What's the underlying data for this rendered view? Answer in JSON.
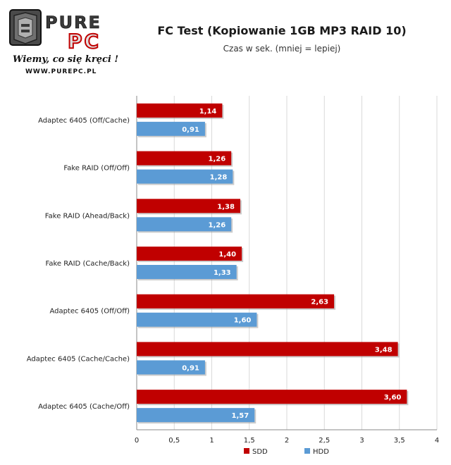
{
  "logo": {
    "wordmark": "PURE PC",
    "slogan": "Wiemy, co się kręci !",
    "url": "WWW.PUREPC.PL"
  },
  "colors": {
    "sdd": "#c00000",
    "hdd": "#5b9bd5",
    "grid": "#d9d9d9",
    "axis": "#888888"
  },
  "chart_data": {
    "type": "bar",
    "orientation": "horizontal",
    "title": "FC Test (Kopiowanie 1GB MP3 RAID 10)",
    "subtitle": "Czas w sek. (mniej = lepiej)",
    "categories": [
      "Adaptec 6405 (Off/Cache)",
      "Fake RAID (Off/Off)",
      "Fake RAID (Ahead/Back)",
      "Fake RAID (Cache/Back)",
      "Adaptec 6405 (Off/Off)",
      "Adaptec 6405 (Cache/Cache)",
      "Adaptec 6405 (Cache/Off)"
    ],
    "series": [
      {
        "name": "SDD",
        "values": [
          1.14,
          1.26,
          1.38,
          1.4,
          2.63,
          3.48,
          3.6
        ],
        "labels": [
          "1,14",
          "1,26",
          "1,38",
          "1,40",
          "2,63",
          "3,48",
          "3,60"
        ]
      },
      {
        "name": "HDD",
        "values": [
          0.91,
          1.28,
          1.26,
          1.33,
          1.6,
          0.91,
          1.57
        ],
        "labels": [
          "0,91",
          "1,28",
          "1,26",
          "1,33",
          "1,60",
          "0,91",
          "1,57"
        ]
      }
    ],
    "xlim": [
      0,
      4
    ],
    "xticks": [
      0,
      0.5,
      1,
      1.5,
      2,
      2.5,
      3,
      3.5,
      4
    ],
    "xtick_labels": [
      "0",
      "0,5",
      "1",
      "1,5",
      "2",
      "2,5",
      "3",
      "3,5",
      "4"
    ],
    "grid": true,
    "legend": "bottom-right"
  }
}
